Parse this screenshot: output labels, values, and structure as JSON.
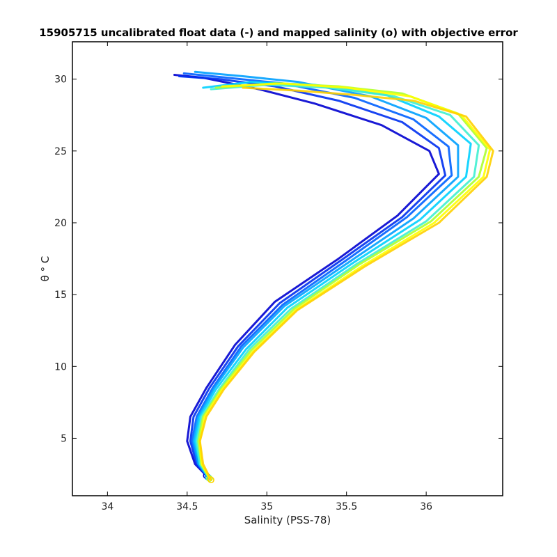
{
  "chart_data": {
    "type": "line",
    "title": "15905715 uncalibrated float data (-) and mapped salinity (o) with objective error",
    "xlabel": "Salinity (PSS-78)",
    "ylabel": "θ ° C",
    "xlim": [
      33.78,
      36.48
    ],
    "ylim": [
      1.0,
      32.6
    ],
    "x_ticks": [
      "34",
      "34.5",
      "35",
      "35.5",
      "36"
    ],
    "x_tick_values": [
      34,
      34.5,
      35,
      35.5,
      36
    ],
    "y_ticks": [
      "5",
      "10",
      "15",
      "20",
      "25",
      "30"
    ],
    "y_tick_values": [
      5,
      10,
      15,
      20,
      25,
      30
    ],
    "grid": false,
    "colormap": [
      "#0000d0",
      "#0050ff",
      "#00b4ff",
      "#33f0e0",
      "#adff2f",
      "#ffff00",
      "#ffd000"
    ],
    "series": [
      {
        "values": [
          [
            34.62,
            2.4
          ],
          [
            34.55,
            3.2
          ],
          [
            34.5,
            4.8
          ],
          [
            34.52,
            6.5
          ],
          [
            34.62,
            8.5
          ],
          [
            34.8,
            11.5
          ],
          [
            35.05,
            14.5
          ],
          [
            35.45,
            17.5
          ],
          [
            35.82,
            20.5
          ],
          [
            36.08,
            23.4
          ],
          [
            36.02,
            25.0
          ],
          [
            35.72,
            26.8
          ],
          [
            35.3,
            28.3
          ],
          [
            34.95,
            29.3
          ],
          [
            34.6,
            30.1
          ],
          [
            34.42,
            30.3
          ]
        ],
        "color": "#0000d0"
      },
      {
        "values": [
          [
            34.63,
            2.3
          ],
          [
            34.56,
            3.2
          ],
          [
            34.52,
            4.8
          ],
          [
            34.54,
            6.5
          ],
          [
            34.64,
            8.5
          ],
          [
            34.82,
            11.4
          ],
          [
            35.08,
            14.4
          ],
          [
            35.48,
            17.5
          ],
          [
            35.85,
            20.4
          ],
          [
            36.12,
            23.3
          ],
          [
            36.08,
            25.2
          ],
          [
            35.85,
            27.0
          ],
          [
            35.45,
            28.5
          ],
          [
            35.05,
            29.5
          ],
          [
            34.7,
            30.0
          ],
          [
            34.45,
            30.2
          ]
        ],
        "color": "#0030f0"
      },
      {
        "values": [
          [
            34.63,
            2.3
          ],
          [
            34.57,
            3.2
          ],
          [
            34.53,
            4.8
          ],
          [
            34.56,
            6.5
          ],
          [
            34.66,
            8.5
          ],
          [
            34.84,
            11.4
          ],
          [
            35.1,
            14.3
          ],
          [
            35.5,
            17.4
          ],
          [
            35.88,
            20.4
          ],
          [
            36.16,
            23.3
          ],
          [
            36.14,
            25.3
          ],
          [
            35.92,
            27.2
          ],
          [
            35.55,
            28.7
          ],
          [
            35.1,
            29.7
          ],
          [
            34.75,
            30.1
          ],
          [
            34.48,
            30.4
          ]
        ],
        "color": "#0060ff"
      },
      {
        "values": [
          [
            34.63,
            2.3
          ],
          [
            34.57,
            3.2
          ],
          [
            34.54,
            4.8
          ],
          [
            34.57,
            6.5
          ],
          [
            34.67,
            8.5
          ],
          [
            34.85,
            11.3
          ],
          [
            35.11,
            14.2
          ],
          [
            35.52,
            17.3
          ],
          [
            35.92,
            20.3
          ],
          [
            36.2,
            23.2
          ],
          [
            36.2,
            25.4
          ],
          [
            36.0,
            27.3
          ],
          [
            35.65,
            28.8
          ],
          [
            35.2,
            29.8
          ],
          [
            34.85,
            30.2
          ],
          [
            34.55,
            30.5
          ]
        ],
        "color": "#00a0ff"
      },
      {
        "values": [
          [
            34.64,
            2.2
          ],
          [
            34.58,
            3.2
          ],
          [
            34.55,
            4.8
          ],
          [
            34.58,
            6.5
          ],
          [
            34.68,
            8.4
          ],
          [
            34.87,
            11.2
          ],
          [
            35.13,
            14.1
          ],
          [
            35.54,
            17.2
          ],
          [
            35.96,
            20.2
          ],
          [
            36.25,
            23.2
          ],
          [
            36.28,
            25.5
          ],
          [
            36.08,
            27.4
          ],
          [
            35.75,
            28.9
          ],
          [
            35.3,
            29.6
          ],
          [
            34.9,
            29.8
          ],
          [
            34.6,
            29.4
          ]
        ],
        "color": "#00d0ff"
      },
      {
        "values": [
          [
            34.64,
            2.2
          ],
          [
            34.58,
            3.2
          ],
          [
            34.56,
            4.8
          ],
          [
            34.59,
            6.5
          ],
          [
            34.7,
            8.4
          ],
          [
            34.89,
            11.2
          ],
          [
            35.15,
            14.0
          ],
          [
            35.56,
            17.1
          ],
          [
            36.0,
            20.1
          ],
          [
            36.3,
            23.2
          ],
          [
            36.33,
            25.4
          ],
          [
            36.15,
            27.5
          ],
          [
            35.8,
            28.8
          ],
          [
            35.4,
            29.4
          ],
          [
            35.0,
            29.6
          ],
          [
            34.65,
            29.3
          ]
        ],
        "color": "#40f0d0"
      },
      {
        "values": [
          [
            34.64,
            2.2
          ],
          [
            34.59,
            3.2
          ],
          [
            34.57,
            4.8
          ],
          [
            34.6,
            6.5
          ],
          [
            34.71,
            8.4
          ],
          [
            34.9,
            11.1
          ],
          [
            35.17,
            14.0
          ],
          [
            35.58,
            17.1
          ],
          [
            36.03,
            20.1
          ],
          [
            36.33,
            23.2
          ],
          [
            36.38,
            25.2
          ],
          [
            36.2,
            27.6
          ],
          [
            35.85,
            29.0
          ],
          [
            35.45,
            29.5
          ],
          [
            35.05,
            29.7
          ],
          [
            34.68,
            29.4
          ]
        ],
        "color": "#adff2f"
      },
      {
        "values": [
          [
            34.65,
            2.1
          ],
          [
            34.59,
            3.2
          ],
          [
            34.58,
            4.8
          ],
          [
            34.61,
            6.5
          ],
          [
            34.72,
            8.4
          ],
          [
            34.91,
            11.0
          ],
          [
            35.18,
            13.9
          ],
          [
            35.6,
            17.0
          ],
          [
            36.05,
            20.0
          ],
          [
            36.36,
            23.2
          ],
          [
            36.4,
            25.1
          ],
          [
            36.22,
            27.5
          ],
          [
            35.9,
            28.8
          ],
          [
            35.5,
            29.4
          ],
          [
            35.1,
            29.7
          ],
          [
            34.72,
            29.5
          ]
        ],
        "color": "#ffff00"
      },
      {
        "values": [
          [
            34.65,
            2.1
          ],
          [
            34.6,
            3.2
          ],
          [
            34.58,
            4.8
          ],
          [
            34.62,
            6.5
          ],
          [
            34.73,
            8.4
          ],
          [
            34.92,
            11.0
          ],
          [
            35.19,
            13.9
          ],
          [
            35.62,
            17.0
          ],
          [
            36.08,
            20.0
          ],
          [
            36.38,
            23.2
          ],
          [
            36.42,
            25.0
          ],
          [
            36.25,
            27.4
          ],
          [
            35.92,
            28.5
          ],
          [
            35.55,
            28.9
          ],
          [
            35.2,
            29.2
          ],
          [
            34.85,
            29.4
          ]
        ],
        "color": "#ffd000"
      }
    ]
  }
}
